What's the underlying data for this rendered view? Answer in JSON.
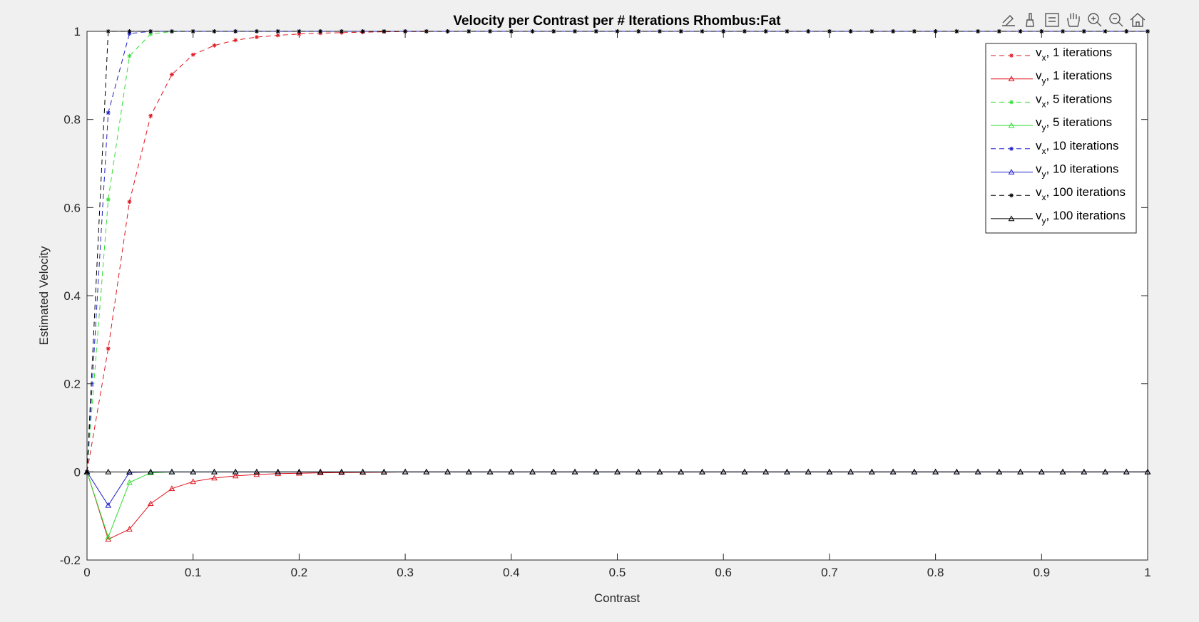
{
  "toolbar": {
    "icons": [
      "export-icon",
      "brush-icon",
      "data-tips-icon",
      "pan-icon",
      "zoom-in-icon",
      "zoom-out-icon",
      "home-icon"
    ]
  },
  "chart_data": {
    "type": "line",
    "title": "Velocity per Contrast per # Iterations Rhombus:Fat",
    "xlabel": "Contrast",
    "ylabel": "Estimated Velocity",
    "xlim": [
      0,
      1
    ],
    "ylim": [
      -0.2,
      1
    ],
    "xticks": [
      0,
      0.1,
      0.2,
      0.3,
      0.4,
      0.5,
      0.6,
      0.7,
      0.8,
      0.9,
      1
    ],
    "xtick_labels": [
      "0",
      "0.1",
      "0.2",
      "0.3",
      "0.4",
      "0.5",
      "0.6",
      "0.7",
      "0.8",
      "0.9",
      "1"
    ],
    "yticks": [
      -0.2,
      0,
      0.2,
      0.4,
      0.6,
      0.8,
      1
    ],
    "ytick_labels": [
      "-0.2",
      "0",
      "0.2",
      "0.4",
      "0.6",
      "0.8",
      "1"
    ],
    "grid": false,
    "legend_position": "top-right",
    "x_step": 0.02,
    "series": [
      {
        "label_main": "v",
        "label_sub": "x",
        "label_rest": ", 1 iterations",
        "color": "#e0141e",
        "style": "dashed",
        "marker": "star",
        "values": [
          0,
          0.28,
          0.613,
          0.808,
          0.902,
          0.947,
          0.968,
          0.98,
          0.987,
          0.991,
          0.994,
          0.996,
          0.997,
          0.998,
          0.999,
          0.9995,
          0.9997,
          0.9998,
          1,
          1,
          1,
          1,
          1,
          1,
          1,
          1,
          1,
          1,
          1,
          1,
          1,
          1,
          1,
          1,
          1,
          1,
          1,
          1,
          1,
          1,
          1,
          1,
          1,
          1,
          1,
          1,
          1,
          1,
          1,
          1,
          1
        ]
      },
      {
        "label_main": "v",
        "label_sub": "y",
        "label_rest": ", 1 iterations",
        "color": "#e0141e",
        "style": "solid",
        "marker": "triangle",
        "values": [
          0,
          -0.153,
          -0.13,
          -0.072,
          -0.038,
          -0.022,
          -0.014,
          -0.009,
          -0.006,
          -0.004,
          -0.003,
          -0.002,
          -0.0015,
          -0.001,
          -0.0007,
          0,
          0,
          0,
          0,
          0,
          0,
          0,
          0,
          0,
          0,
          0,
          0,
          0,
          0,
          0,
          0,
          0,
          0,
          0,
          0,
          0,
          0,
          0,
          0,
          0,
          0,
          0,
          0,
          0,
          0,
          0,
          0,
          0,
          0,
          0,
          0
        ]
      },
      {
        "label_main": "v",
        "label_sub": "x",
        "label_rest": ", 5 iterations",
        "color": "#33dd33",
        "style": "dashed",
        "marker": "star",
        "values": [
          0,
          0.618,
          0.944,
          0.994,
          0.9995,
          1,
          1,
          1,
          1,
          1,
          1,
          1,
          1,
          1,
          1,
          1,
          1,
          1,
          1,
          1,
          1,
          1,
          1,
          1,
          1,
          1,
          1,
          1,
          1,
          1,
          1,
          1,
          1,
          1,
          1,
          1,
          1,
          1,
          1,
          1,
          1,
          1,
          1,
          1,
          1,
          1,
          1,
          1,
          1,
          1,
          1
        ]
      },
      {
        "label_main": "v",
        "label_sub": "y",
        "label_rest": ", 5 iterations",
        "color": "#33dd33",
        "style": "solid",
        "marker": "triangle",
        "values": [
          0,
          -0.148,
          -0.024,
          -0.002,
          0,
          0,
          0,
          0,
          0,
          0,
          0,
          0,
          0,
          0,
          0,
          0,
          0,
          0,
          0,
          0,
          0,
          0,
          0,
          0,
          0,
          0,
          0,
          0,
          0,
          0,
          0,
          0,
          0,
          0,
          0,
          0,
          0,
          0,
          0,
          0,
          0,
          0,
          0,
          0,
          0,
          0,
          0,
          0,
          0,
          0,
          0
        ]
      },
      {
        "label_main": "v",
        "label_sub": "x",
        "label_rest": ", 10 iterations",
        "color": "#1f1fc8",
        "style": "dashed",
        "marker": "star",
        "values": [
          0,
          0.815,
          0.995,
          1,
          1,
          1,
          1,
          1,
          1,
          1,
          1,
          1,
          1,
          1,
          1,
          1,
          1,
          1,
          1,
          1,
          1,
          1,
          1,
          1,
          1,
          1,
          1,
          1,
          1,
          1,
          1,
          1,
          1,
          1,
          1,
          1,
          1,
          1,
          1,
          1,
          1,
          1,
          1,
          1,
          1,
          1,
          1,
          1,
          1,
          1,
          1
        ]
      },
      {
        "label_main": "v",
        "label_sub": "y",
        "label_rest": ", 10 iterations",
        "color": "#1f1fc8",
        "style": "solid",
        "marker": "triangle",
        "values": [
          0,
          -0.076,
          -0.001,
          0,
          0,
          0,
          0,
          0,
          0,
          0,
          0,
          0,
          0,
          0,
          0,
          0,
          0,
          0,
          0,
          0,
          0,
          0,
          0,
          0,
          0,
          0,
          0,
          0,
          0,
          0,
          0,
          0,
          0,
          0,
          0,
          0,
          0,
          0,
          0,
          0,
          0,
          0,
          0,
          0,
          0,
          0,
          0,
          0,
          0,
          0,
          0
        ]
      },
      {
        "label_main": "v",
        "label_sub": "x",
        "label_rest": ", 100 iterations",
        "color": "#000000",
        "style": "dashed",
        "marker": "star",
        "values": [
          0,
          1,
          1,
          1,
          1,
          1,
          1,
          1,
          1,
          1,
          1,
          1,
          1,
          1,
          1,
          1,
          1,
          1,
          1,
          1,
          1,
          1,
          1,
          1,
          1,
          1,
          1,
          1,
          1,
          1,
          1,
          1,
          1,
          1,
          1,
          1,
          1,
          1,
          1,
          1,
          1,
          1,
          1,
          1,
          1,
          1,
          1,
          1,
          1,
          1,
          1
        ]
      },
      {
        "label_main": "v",
        "label_sub": "y",
        "label_rest": ", 100 iterations",
        "color": "#000000",
        "style": "solid",
        "marker": "triangle",
        "values": [
          0,
          0,
          0,
          0,
          0,
          0,
          0,
          0,
          0,
          0,
          0,
          0,
          0,
          0,
          0,
          0,
          0,
          0,
          0,
          0,
          0,
          0,
          0,
          0,
          0,
          0,
          0,
          0,
          0,
          0,
          0,
          0,
          0,
          0,
          0,
          0,
          0,
          0,
          0,
          0,
          0,
          0,
          0,
          0,
          0,
          0,
          0,
          0,
          0,
          0,
          0
        ]
      }
    ]
  }
}
